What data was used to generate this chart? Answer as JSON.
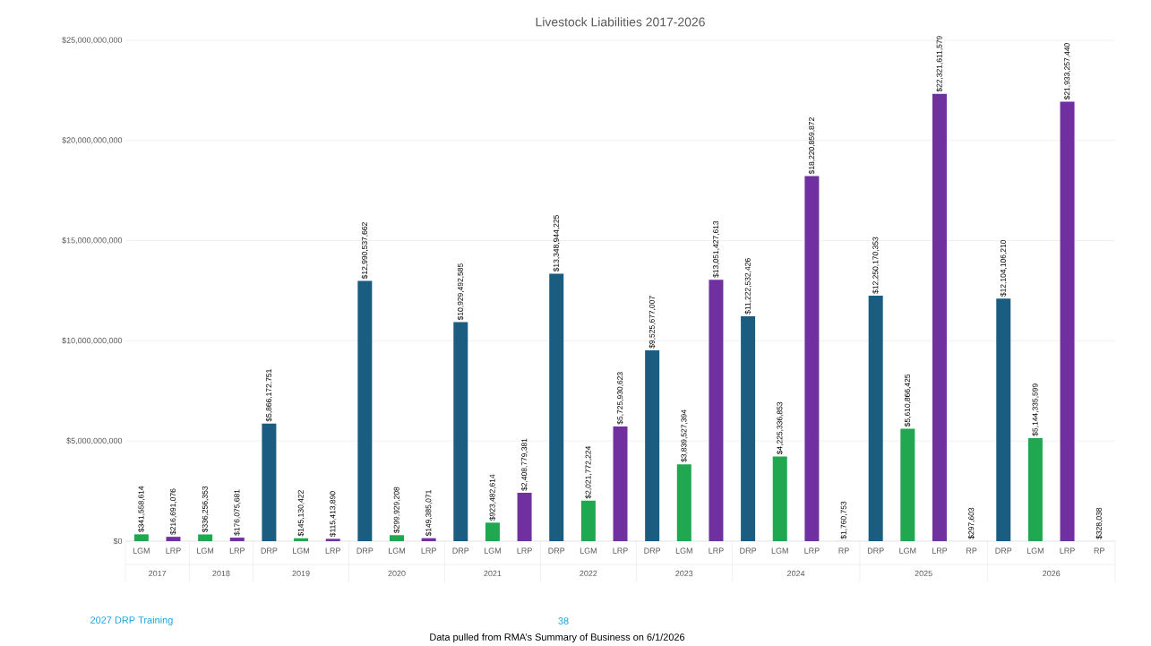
{
  "chart_data": {
    "type": "bar",
    "title": "Livestock Liabilities 2017-2026",
    "categories": [
      "LGM",
      "LRP",
      "LGM",
      "LRP",
      "DRP",
      "LGM",
      "LRP",
      "DRP",
      "LGM",
      "LRP",
      "DRP",
      "LGM",
      "LRP",
      "DRP",
      "LGM",
      "LRP",
      "DRP",
      "LGM",
      "LRP",
      "DRP",
      "LGM",
      "LRP",
      "RP",
      "DRP",
      "LGM",
      "LRP",
      "RP",
      "DRP",
      "LGM",
      "LRP",
      "RP"
    ],
    "values": [
      341558614,
      216691076,
      336256353,
      176075681,
      5866172751,
      145130422,
      115413890,
      12990537662,
      299929208,
      149385071,
      10929492585,
      923482614,
      2408779381,
      13348944225,
      2021772224,
      5725930623,
      9525677007,
      3839527394,
      13051427613,
      11222532426,
      4225336853,
      18220859872,
      1760753,
      12250170353,
      5610866425,
      22321611579,
      297603,
      12104106210,
      5144335599,
      21933257440,
      328038
    ],
    "colors": [
      "#1fa84f",
      "#7030a0",
      "#1fa84f",
      "#7030a0",
      "#1a5d80",
      "#1fa84f",
      "#7030a0",
      "#1a5d80",
      "#1fa84f",
      "#7030a0",
      "#1a5d80",
      "#1fa84f",
      "#7030a0",
      "#1a5d80",
      "#1fa84f",
      "#7030a0",
      "#1a5d80",
      "#1fa84f",
      "#7030a0",
      "#1a5d80",
      "#1fa84f",
      "#7030a0",
      "#1a5d80",
      "#1a5d80",
      "#1fa84f",
      "#7030a0",
      "#1a5d80",
      "#1a5d80",
      "#1fa84f",
      "#7030a0",
      "#1a5d80"
    ],
    "value_labels": [
      "$341,558,614",
      "$216,691,076",
      "$336,256,353",
      "$176,075,681",
      "$5,866,172,751",
      "$145,130,422",
      "$115,413,890",
      "$12,990,537,662",
      "$299,929,208",
      "$149,385,071",
      "$10,929,492,585",
      "$923,482,614",
      "$2,408,779,381",
      "$13,348,944,225",
      "$2,021,772,224",
      "$5,725,930,623",
      "$9,525,677,007",
      "$3,839,527,394",
      "$13,051,427,613",
      "$11,222,532,426",
      "$4,225,336,853",
      "$18,220,859,872",
      "$1,760,753",
      "$12,250,170,353",
      "$5,610,866,425",
      "$22,321,611,579",
      "$297,603",
      "$12,104,106,210",
      "$5,144,335,599",
      "$21,933,257,440",
      "$328,038"
    ],
    "ylim": [
      0,
      25000000000
    ],
    "yticks": [
      {
        "value": 0,
        "label": "$0"
      },
      {
        "value": 5000000000,
        "label": "$5,000,000,000"
      },
      {
        "value": 10000000000,
        "label": "$10,000,000,000"
      },
      {
        "value": 15000000000,
        "label": "$15,000,000,000"
      },
      {
        "value": 20000000000,
        "label": "$20,000,000,000"
      },
      {
        "value": 25000000000,
        "label": "$25,000,000,000"
      }
    ],
    "grid": "y",
    "annotations": [
      "2017",
      "2018",
      "2019",
      "2020",
      "2021",
      "2022",
      "2023",
      "2024",
      "2025",
      "2026",
      "2027 DRP Training",
      "38",
      "Data pulled from RMA’s Summary of Business on 6/1/2026"
    ]
  }
}
